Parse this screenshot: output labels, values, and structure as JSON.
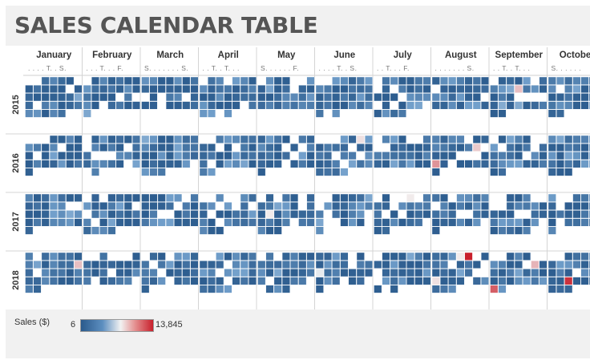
{
  "title": "SALES CALENDAR TABLE",
  "chart_data": {
    "type": "heatmap",
    "title": "SALES CALENDAR TABLE",
    "measure": "Sales ($)",
    "years": [
      "2015",
      "2016",
      "2017",
      "2018"
    ],
    "months": [
      {
        "name": "January",
        "days": ". . . . T. . S."
      },
      {
        "name": "February",
        "days": ". . . T. . . F."
      },
      {
        "name": "March",
        "days": "S. . . . . . . S."
      },
      {
        "name": "April",
        "days": ". . T. . T. . ."
      },
      {
        "name": "May",
        "days": "S. . . . . . F."
      },
      {
        "name": "June",
        "days": ". . . . T. . S."
      },
      {
        "name": "July",
        "days": ". . T. . . F."
      },
      {
        "name": "August",
        "days": ". . . . . . . S."
      },
      {
        "name": "September",
        "days": ". . T. . T. . ."
      },
      {
        "name": "October",
        "days": "S. . . . . ."
      }
    ],
    "color_scale": {
      "min": 6,
      "max": 13845,
      "min_label": "6",
      "max_label": "13,845",
      "low_color": "#2a5a8c",
      "mid_color": "#f2f2f2",
      "high_color": "#c8202c"
    },
    "high_value_cells": [
      {
        "year": "2015",
        "month": "September",
        "sales": 6500
      },
      {
        "year": "2016",
        "month": "June",
        "sales": 5000
      },
      {
        "year": "2016",
        "month": "August",
        "sales": 8500
      },
      {
        "year": "2016",
        "month": "August",
        "sales": 6000
      },
      {
        "year": "2016",
        "month": "August",
        "sales": 5500
      },
      {
        "year": "2017",
        "month": "February",
        "sales": 5500
      },
      {
        "year": "2017",
        "month": "May",
        "sales": 4500
      },
      {
        "year": "2017",
        "month": "July",
        "sales": 4500
      },
      {
        "year": "2018",
        "month": "January",
        "sales": 6500
      },
      {
        "year": "2018",
        "month": "August",
        "sales": 13845
      },
      {
        "year": "2018",
        "month": "August",
        "sales": 5000
      },
      {
        "year": "2018",
        "month": "August",
        "sales": 4500
      },
      {
        "year": "2018",
        "month": "September",
        "sales": 11000
      },
      {
        "year": "2018",
        "month": "September",
        "sales": 7000
      },
      {
        "year": "2018",
        "month": "October",
        "sales": 13000
      },
      {
        "year": "2018",
        "month": "June",
        "sales": 4000
      }
    ]
  },
  "legend": {
    "title": "Sales ($)",
    "min_label": "6",
    "max_label": "13,845"
  }
}
